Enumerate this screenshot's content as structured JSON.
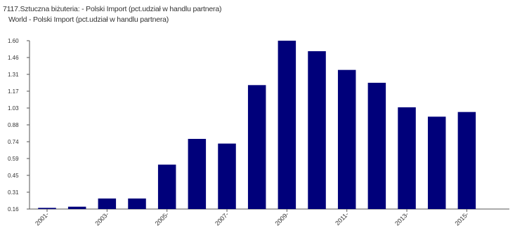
{
  "chart_data": {
    "type": "bar",
    "title": "7117.Sztuczna biżuteria: - Polski Import (pct.udział w handlu partnera)",
    "subtitle": "World - Polski Import (pct.udział w handlu partnera)",
    "xlabel": "",
    "ylabel": "",
    "x_tick_labels": [
      "2001-",
      "2003-",
      "2005-",
      "2007-",
      "2009-",
      "2011-",
      "2013-",
      "2015-"
    ],
    "y_tick_labels": [
      "1.60",
      "1.46",
      "1.31",
      "1.17",
      "1.03",
      "0.88",
      "0.74",
      "0.59",
      "0.45",
      "0.31",
      "0.16"
    ],
    "ylim": [
      0.16,
      1.6
    ],
    "grid": false,
    "bar_color": "#00007a",
    "categories": [
      "2001",
      "2002",
      "2003",
      "2004",
      "2005",
      "2006",
      "2007",
      "2008",
      "2009",
      "2010",
      "2011",
      "2012",
      "2013",
      "2014",
      "2015"
    ],
    "values": [
      0.17,
      0.18,
      0.25,
      0.25,
      0.54,
      0.76,
      0.72,
      1.22,
      1.6,
      1.51,
      1.35,
      1.24,
      1.03,
      0.95,
      0.99
    ]
  }
}
